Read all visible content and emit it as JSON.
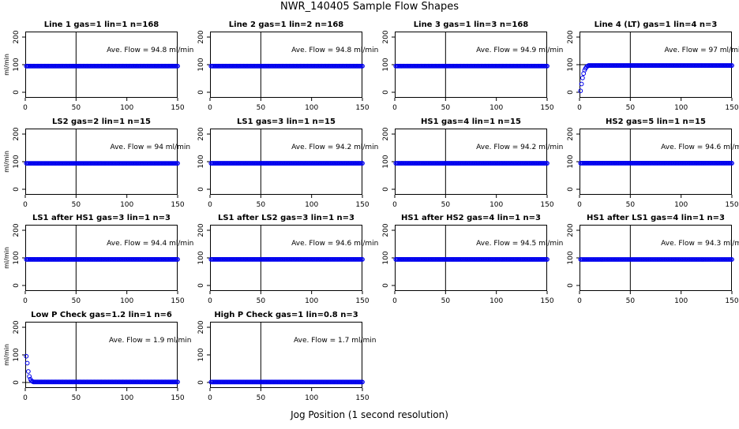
{
  "title": "NWR_140405  Sample Flow Shapes",
  "xlabel": "Jog Position (1 second resolution)",
  "ylabel": "ml/min",
  "colors": {
    "points": "#0000ee",
    "frame": "#000000"
  },
  "chart_data": [
    {
      "type": "scatter",
      "title": "Line 1 gas=1 lin=1 n=168",
      "annotation": "Ave. Flow = 94.8  ml/min",
      "xlim": [
        0,
        150
      ],
      "ylim": [
        -20,
        220
      ],
      "xticks": [
        0,
        50,
        100,
        150
      ],
      "yticks": [
        0,
        100,
        200
      ],
      "hline": 100,
      "vline": 50,
      "profile": {
        "steady": 94.8,
        "start": []
      }
    },
    {
      "type": "scatter",
      "title": "Line 2 gas=1 lin=2 n=168",
      "annotation": "Ave. Flow = 94.8  ml/min",
      "xlim": [
        0,
        150
      ],
      "ylim": [
        -20,
        220
      ],
      "xticks": [
        0,
        50,
        100,
        150
      ],
      "yticks": [
        0,
        100,
        200
      ],
      "hline": 100,
      "vline": 50,
      "profile": {
        "steady": 94.8,
        "start": []
      }
    },
    {
      "type": "scatter",
      "title": "Line 3 gas=1 lin=3 n=168",
      "annotation": "Ave. Flow = 94.9  ml/min",
      "xlim": [
        0,
        150
      ],
      "ylim": [
        -20,
        220
      ],
      "xticks": [
        0,
        50,
        100,
        150
      ],
      "yticks": [
        0,
        100,
        200
      ],
      "hline": 100,
      "vline": 50,
      "profile": {
        "steady": 94.9,
        "start": []
      }
    },
    {
      "type": "scatter",
      "title": "Line 4 (LT) gas=1 lin=4 n=3",
      "annotation": "Ave. Flow = 97  ml/min",
      "xlim": [
        0,
        150
      ],
      "ylim": [
        -20,
        220
      ],
      "xticks": [
        0,
        50,
        100,
        150
      ],
      "yticks": [
        0,
        100,
        200
      ],
      "hline": 100,
      "vline": 50,
      "profile": {
        "steady": 97,
        "start": [
          [
            1,
            5
          ],
          [
            2,
            30
          ],
          [
            3,
            52
          ],
          [
            4,
            68
          ],
          [
            5,
            80
          ],
          [
            6,
            87
          ],
          [
            7,
            92
          ],
          [
            8,
            95
          ]
        ]
      }
    },
    {
      "type": "scatter",
      "title": "LS2 gas=2 lin=1 n=15",
      "annotation": "Ave. Flow = 94  ml/min",
      "xlim": [
        0,
        150
      ],
      "ylim": [
        -20,
        220
      ],
      "xticks": [
        0,
        50,
        100,
        150
      ],
      "yticks": [
        0,
        100,
        200
      ],
      "hline": 100,
      "vline": 50,
      "profile": {
        "steady": 94,
        "start": []
      }
    },
    {
      "type": "scatter",
      "title": "LS1 gas=3 lin=1 n=15",
      "annotation": "Ave. Flow = 94.2  ml/min",
      "xlim": [
        0,
        150
      ],
      "ylim": [
        -20,
        220
      ],
      "xticks": [
        0,
        50,
        100,
        150
      ],
      "yticks": [
        0,
        100,
        200
      ],
      "hline": 100,
      "vline": 50,
      "profile": {
        "steady": 94.2,
        "start": []
      }
    },
    {
      "type": "scatter",
      "title": "HS1 gas=4 lin=1 n=15",
      "annotation": "Ave. Flow = 94.2  ml/min",
      "xlim": [
        0,
        150
      ],
      "ylim": [
        -20,
        220
      ],
      "xticks": [
        0,
        50,
        100,
        150
      ],
      "yticks": [
        0,
        100,
        200
      ],
      "hline": 100,
      "vline": 50,
      "profile": {
        "steady": 94.2,
        "start": []
      }
    },
    {
      "type": "scatter",
      "title": "HS2 gas=5 lin=1 n=15",
      "annotation": "Ave. Flow = 94.6  ml/min",
      "xlim": [
        0,
        150
      ],
      "ylim": [
        -20,
        220
      ],
      "xticks": [
        0,
        50,
        100,
        150
      ],
      "yticks": [
        0,
        100,
        200
      ],
      "hline": 100,
      "vline": 50,
      "profile": {
        "steady": 94.6,
        "start": []
      }
    },
    {
      "type": "scatter",
      "title": "LS1 after HS1 gas=3 lin=1 n=3",
      "annotation": "Ave. Flow = 94.4  ml/min",
      "xlim": [
        0,
        150
      ],
      "ylim": [
        -20,
        220
      ],
      "xticks": [
        0,
        50,
        100,
        150
      ],
      "yticks": [
        0,
        100,
        200
      ],
      "hline": 100,
      "vline": 50,
      "profile": {
        "steady": 94.4,
        "start": []
      }
    },
    {
      "type": "scatter",
      "title": "LS1 after LS2 gas=3 lin=1 n=3",
      "annotation": "Ave. Flow = 94.6  ml/min",
      "xlim": [
        0,
        150
      ],
      "ylim": [
        -20,
        220
      ],
      "xticks": [
        0,
        50,
        100,
        150
      ],
      "yticks": [
        0,
        100,
        200
      ],
      "hline": 100,
      "vline": 50,
      "profile": {
        "steady": 94.6,
        "start": []
      }
    },
    {
      "type": "scatter",
      "title": "HS1 after HS2 gas=4 lin=1 n=3",
      "annotation": "Ave. Flow = 94.5  ml/min",
      "xlim": [
        0,
        150
      ],
      "ylim": [
        -20,
        220
      ],
      "xticks": [
        0,
        50,
        100,
        150
      ],
      "yticks": [
        0,
        100,
        200
      ],
      "hline": 100,
      "vline": 50,
      "profile": {
        "steady": 94.5,
        "start": []
      }
    },
    {
      "type": "scatter",
      "title": "HS1 after LS1 gas=4 lin=1 n=3",
      "annotation": "Ave. Flow = 94.3  ml/min",
      "xlim": [
        0,
        150
      ],
      "ylim": [
        -20,
        220
      ],
      "xticks": [
        0,
        50,
        100,
        150
      ],
      "yticks": [
        0,
        100,
        200
      ],
      "hline": 100,
      "vline": 50,
      "profile": {
        "steady": 94.3,
        "start": []
      }
    },
    {
      "type": "scatter",
      "title": "Low P Check gas=1.2 lin=1 n=6",
      "annotation": "Ave. Flow = 1.9  ml/min",
      "xlim": [
        0,
        150
      ],
      "ylim": [
        -20,
        220
      ],
      "xticks": [
        0,
        50,
        100,
        150
      ],
      "yticks": [
        0,
        100,
        200
      ],
      "hline": 0,
      "vline": 50,
      "profile": {
        "steady": 1.9,
        "start": [
          [
            1,
            95
          ],
          [
            2,
            70
          ],
          [
            3,
            40
          ],
          [
            4,
            22
          ],
          [
            5,
            12
          ],
          [
            6,
            6
          ],
          [
            7,
            4
          ]
        ]
      }
    },
    {
      "type": "scatter",
      "title": "High P Check gas=1 lin=0.8 n=3",
      "annotation": "Ave. Flow = 1.7  ml/min",
      "xlim": [
        0,
        150
      ],
      "ylim": [
        -20,
        220
      ],
      "xticks": [
        0,
        50,
        100,
        150
      ],
      "yticks": [
        0,
        100,
        200
      ],
      "hline": 0,
      "vline": 50,
      "profile": {
        "steady": 1.7,
        "start": []
      }
    }
  ]
}
